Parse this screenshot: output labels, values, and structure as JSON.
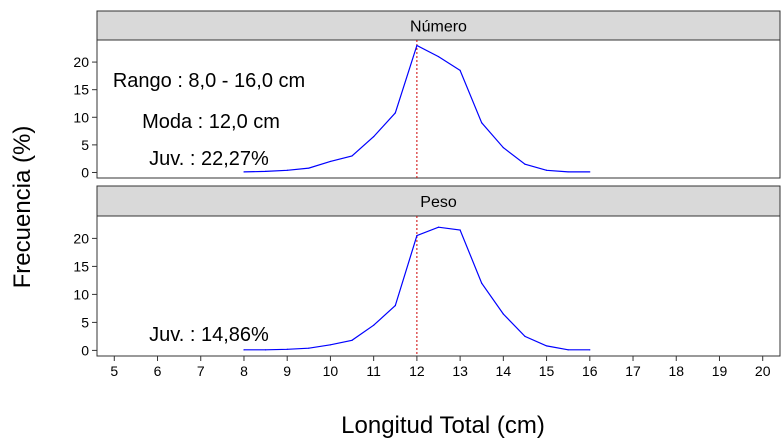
{
  "chart_data": {
    "type": "line",
    "ylabel": "Frecuencia (%)",
    "xlabel": "Longitud Total (cm)",
    "xlim": [
      4.6,
      20.4
    ],
    "x_ticks": [
      "5",
      "6",
      "7",
      "8",
      "9",
      "10",
      "11",
      "12",
      "13",
      "14",
      "15",
      "16",
      "17",
      "18",
      "19",
      "20"
    ],
    "ylim": [
      -1,
      24
    ],
    "y_ticks": [
      "0",
      "5",
      "10",
      "15",
      "20"
    ],
    "colors": {
      "series": "#0000ff",
      "mode_line": "#cc0000",
      "strip": "#d9d9d9"
    },
    "mode_x": 12.0,
    "panels": [
      {
        "strip": "Número",
        "annotations": [
          "Rango : 8,0 - 16,0 cm",
          "Moda : 12,0 cm",
          "Juv. : 22,27%"
        ],
        "x": [
          8,
          8.5,
          9,
          9.5,
          10,
          10.5,
          11,
          11.5,
          12,
          12.5,
          13,
          13.5,
          14,
          14.5,
          15,
          15.5,
          16
        ],
        "values": [
          0.1,
          0.2,
          0.4,
          0.8,
          2.0,
          3.0,
          6.5,
          10.8,
          23.0,
          21.0,
          18.5,
          9.0,
          4.5,
          1.5,
          0.4,
          0.1,
          0.1
        ]
      },
      {
        "strip": "Peso",
        "annotations": [
          "Juv. : 14,86%"
        ],
        "x": [
          8,
          8.5,
          9,
          9.5,
          10,
          10.5,
          11,
          11.5,
          12,
          12.5,
          13,
          13.5,
          14,
          14.5,
          15,
          15.5,
          16
        ],
        "values": [
          0.1,
          0.1,
          0.2,
          0.4,
          1.0,
          1.8,
          4.5,
          8.0,
          20.5,
          22.0,
          21.5,
          12.0,
          6.5,
          2.5,
          0.8,
          0.1,
          0.1
        ]
      }
    ]
  }
}
